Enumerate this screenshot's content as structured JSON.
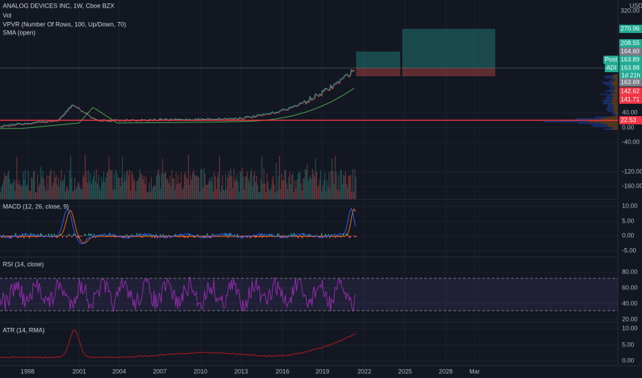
{
  "legend": {
    "symbol": "ANALOG DEVICES INC, 1W, Cboe BZX",
    "volume": "Vol",
    "vpvr": "VPVR (Number Of Rows, 100, Up/Down, 70)",
    "sma": "SMA (open)"
  },
  "panes": {
    "macd": "MACD (12, 26, close, 9)",
    "rsi": "RSI (14, close)",
    "atr": "ATR (14, RMA)"
  },
  "price_axis": {
    "currency": "USD",
    "top": "320.00",
    "labels": [
      "40.00",
      "0.00",
      "-40.00",
      "-120.00",
      "-160.00"
    ],
    "badges": {
      "target": "270.96",
      "entry_high": "208.55",
      "high": "164.60",
      "post_tag": "Post",
      "post": "163.89",
      "adi_tag": "ADI",
      "last": "163.88",
      "countdown": "1d 21h",
      "close": "163.69",
      "stop_a": "142.62",
      "stop_b": "141.71",
      "line": "22.53"
    }
  },
  "macd_axis": [
    "10.00",
    "5.00",
    "0.00",
    "-5.00"
  ],
  "rsi_axis": [
    "80.00",
    "60.00",
    "40.00",
    "20.00"
  ],
  "atr_axis": [
    "10.00",
    "5.00",
    "0.00"
  ],
  "time_axis": [
    "1998",
    "2001",
    "2004",
    "2007",
    "2010",
    "2013",
    "2016",
    "2019",
    "2022",
    "2025",
    "2028",
    "Mar"
  ]
}
